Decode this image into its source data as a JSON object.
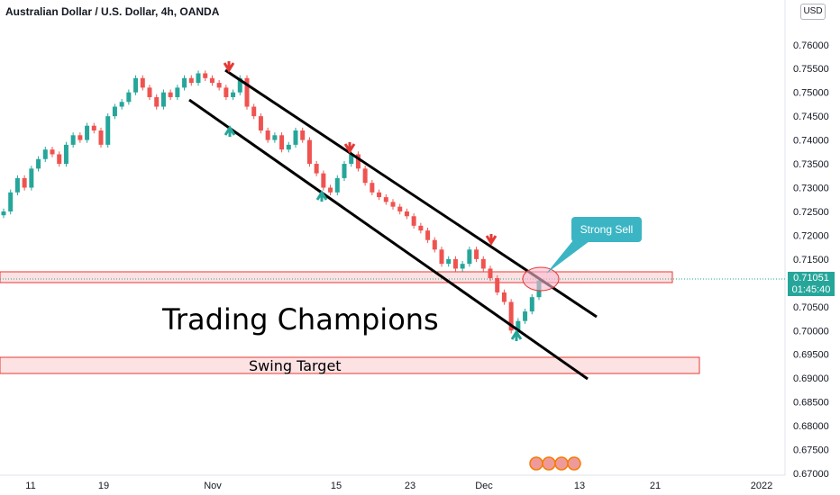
{
  "header": {
    "title": "Australian Dollar / U.S. Dollar, 4h, OANDA"
  },
  "currency": "USD",
  "price_tag": {
    "price": "0.71051",
    "countdown": "01:45:40"
  },
  "annotations": {
    "watermark": "Trading Champions",
    "swing_target": "Swing Target",
    "callout": "Strong Sell"
  },
  "colors": {
    "up": "#26a69a",
    "down": "#ef5350",
    "zone_fill": "#fde2e4",
    "zone_border": "#e53935",
    "callout": "#3bb5c4",
    "channel": "#000000"
  },
  "chart_data": {
    "type": "candlestick",
    "y_ticks": [
      "0.76000",
      "0.75500",
      "0.75000",
      "0.74500",
      "0.74000",
      "0.73500",
      "0.73000",
      "0.72500",
      "0.72000",
      "0.71500",
      "0.71051",
      "0.70500",
      "0.70000",
      "0.69500",
      "0.69000",
      "0.68500",
      "0.68000",
      "0.67500",
      "0.67000"
    ],
    "x_ticks": [
      "11",
      "19",
      "Nov",
      "15",
      "23",
      "Dec",
      "13",
      "21",
      "2022"
    ],
    "ylim": [
      0.67,
      0.766
    ],
    "grid": false,
    "series_close": [
      [
        0.725,
        0.729,
        0.732,
        0.73,
        0.734,
        0.736,
        0.738,
        0.737,
        0.735,
        0.739,
        0.741,
        0.74,
        0.743,
        0.742,
        0.739,
        0.745,
        0.747,
        0.748,
        0.75,
        0.753,
        0.751,
        0.749,
        0.747,
        0.75,
        0.749,
        0.751,
        0.753,
        0.752,
        0.754,
        0.753,
        0.752,
        0.751,
        0.749,
        0.75,
        0.753,
        0.747,
        0.745,
        0.742,
        0.74,
        0.741,
        0.738,
        0.739,
        0.742,
        0.74,
        0.735,
        0.733,
        0.73,
        0.729,
        0.732,
        0.735,
        0.737,
        0.734,
        0.731,
        0.729,
        0.728,
        0.727,
        0.726,
        0.725,
        0.724,
        0.722,
        0.721,
        0.719,
        0.717,
        0.714,
        0.715,
        0.713,
        0.714,
        0.717,
        0.715,
        0.713,
        0.711,
        0.708,
        0.706,
        0.7,
        0.702,
        0.704,
        0.707,
        0.7105
      ]
    ],
    "channel_upper": {
      "from": [
        "Nov",
        0.7535
      ],
      "to": [
        "13",
        0.704
      ]
    },
    "channel_lower": {
      "from": [
        "Nov",
        0.748
      ],
      "to": [
        "13",
        0.689
      ]
    },
    "resistance_zone": [
      0.7102,
      0.7125
    ],
    "swing_target_zone": [
      0.6905,
      0.6935
    ],
    "sell_markers": 3,
    "buy_markers": 3
  }
}
